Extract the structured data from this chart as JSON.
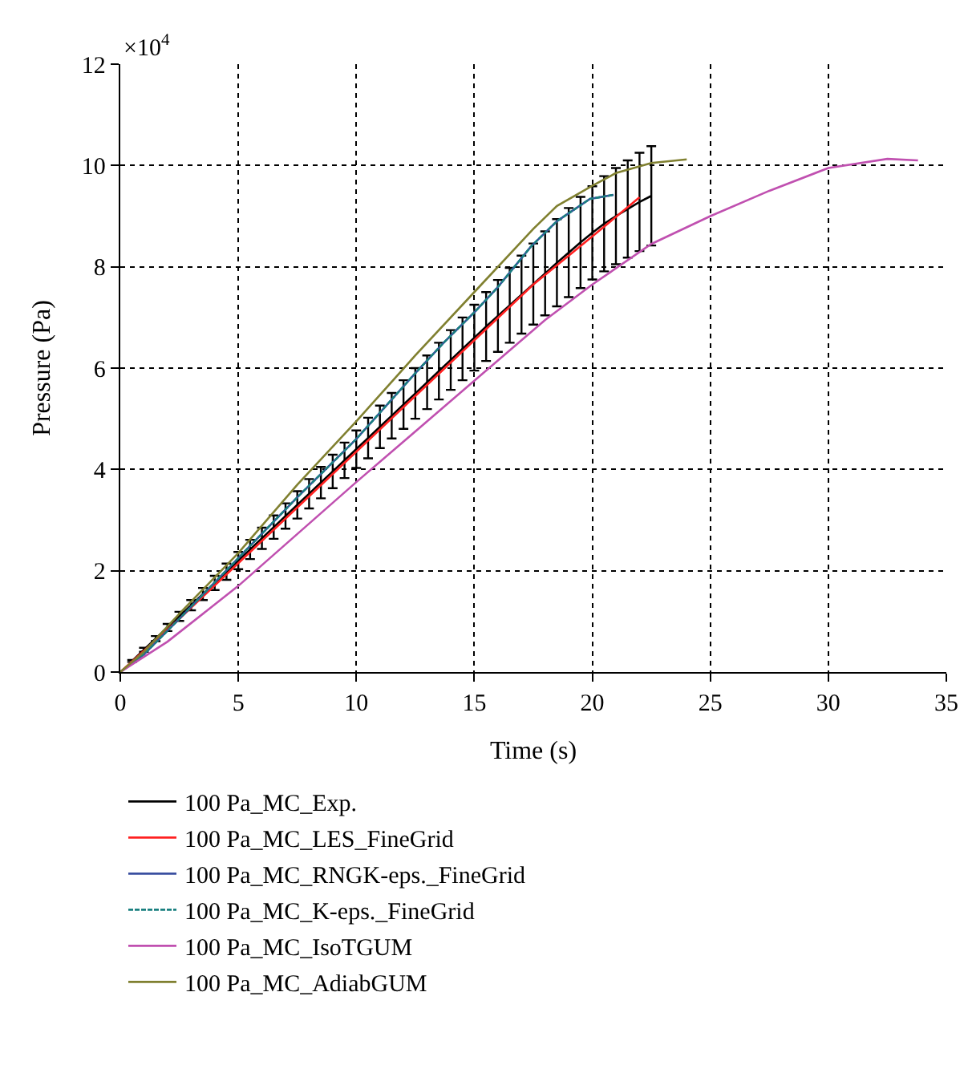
{
  "chart_data": {
    "type": "line",
    "xlabel": "Time (s)",
    "ylabel": "Pressure (Pa)",
    "annotations": [
      "×10$^{4}$"
    ],
    "xlim": [
      0,
      35
    ],
    "xticks": [
      0,
      5,
      10,
      15,
      20,
      25,
      30,
      35
    ],
    "ylim": [
      0,
      12
    ],
    "yticks": [
      0,
      2,
      4,
      6,
      8,
      10,
      12
    ],
    "grid": true,
    "legend": "bottom",
    "marker": "none",
    "series": [
      {
        "name": "100 Pa_MC_Exp.",
        "color": "#000000",
        "line_style": "solid",
        "x": [
          0.5,
          1,
          1.5,
          2,
          2.5,
          3,
          3.5,
          4,
          4.5,
          5,
          5.5,
          6,
          6.5,
          7,
          7.5,
          8,
          8.5,
          9,
          9.5,
          10,
          10.5,
          11,
          11.5,
          12,
          12.5,
          13,
          13.5,
          14,
          14.5,
          15,
          15.5,
          16,
          16.5,
          17,
          17.5,
          18,
          18.5,
          19,
          19.5,
          20,
          20.5,
          21,
          21.5,
          22,
          22.5
        ],
        "values": [
          0.22,
          0.44,
          0.66,
          0.88,
          1.1,
          1.32,
          1.54,
          1.76,
          1.98,
          2.2,
          2.42,
          2.64,
          2.86,
          3.08,
          3.3,
          3.52,
          3.74,
          3.96,
          4.18,
          4.4,
          4.62,
          4.84,
          5.06,
          5.28,
          5.5,
          5.72,
          5.94,
          6.16,
          6.38,
          6.6,
          6.82,
          7.03,
          7.24,
          7.45,
          7.66,
          7.87,
          8.08,
          8.28,
          8.48,
          8.67,
          8.85,
          9.0,
          9.14,
          9.28,
          9.4
        ],
        "errors": [
          0.02,
          0.04,
          0.05,
          0.07,
          0.09,
          0.1,
          0.12,
          0.14,
          0.16,
          0.17,
          0.19,
          0.21,
          0.23,
          0.25,
          0.27,
          0.29,
          0.31,
          0.33,
          0.35,
          0.37,
          0.4,
          0.42,
          0.45,
          0.48,
          0.5,
          0.53,
          0.56,
          0.59,
          0.62,
          0.65,
          0.68,
          0.71,
          0.74,
          0.77,
          0.8,
          0.83,
          0.86,
          0.88,
          0.9,
          0.92,
          0.94,
          0.95,
          0.96,
          0.97,
          0.98
        ]
      },
      {
        "name": "100 Pa_MC_LES_FineGrid",
        "color": "#ff2020",
        "line_style": "solid",
        "x": [
          0,
          2.5,
          5,
          7.5,
          10,
          12.5,
          15,
          17.5,
          20,
          22
        ],
        "values": [
          0,
          1.05,
          2.15,
          3.25,
          4.35,
          5.45,
          6.55,
          7.65,
          8.6,
          9.37
        ]
      },
      {
        "name": "100 Pa_MC_RNGK-eps._FineGrid",
        "color": "#3a4fa0",
        "line_style": "solid",
        "x": [
          0,
          1,
          2.5,
          5,
          7.5,
          10,
          12.5,
          13.7,
          15,
          16,
          17.4,
          18.5,
          19.9,
          20.9
        ],
        "values": [
          0,
          0.35,
          1.05,
          2.25,
          3.45,
          4.6,
          5.9,
          6.5,
          7.1,
          7.6,
          8.4,
          8.9,
          9.34,
          9.42
        ]
      },
      {
        "name": "100 Pa_MC_K-eps._FineGrid",
        "color": "#1a8080",
        "line_style": "dashed",
        "x": [
          0,
          1,
          2.5,
          5,
          7.5,
          10,
          12.5,
          13.7,
          15,
          16,
          17.4,
          18.5,
          19.9,
          20.9
        ],
        "values": [
          0,
          0.35,
          1.05,
          2.25,
          3.45,
          4.6,
          5.9,
          6.5,
          7.1,
          7.6,
          8.4,
          8.9,
          9.34,
          9.42
        ]
      },
      {
        "name": "100 Pa_MC_IsoTGUM",
        "color": "#c050b0",
        "line_style": "solid",
        "x": [
          0,
          2,
          5,
          10,
          15,
          18,
          20,
          22.5,
          25,
          27.5,
          30,
          32.5,
          33.8
        ],
        "values": [
          0,
          0.6,
          1.7,
          3.75,
          5.75,
          6.95,
          7.65,
          8.45,
          9.0,
          9.5,
          9.95,
          10.13,
          10.1
        ]
      },
      {
        "name": "100 Pa_MC_AdiabGUM",
        "color": "#808030",
        "line_style": "solid",
        "x": [
          0,
          1,
          2.5,
          5,
          7.5,
          10,
          12.5,
          15,
          17.5,
          18.5,
          20,
          21,
          22.5,
          24
        ],
        "values": [
          0,
          0.4,
          1.15,
          2.35,
          3.7,
          4.95,
          6.25,
          7.5,
          8.75,
          9.2,
          9.6,
          9.85,
          10.05,
          10.12
        ]
      }
    ]
  }
}
